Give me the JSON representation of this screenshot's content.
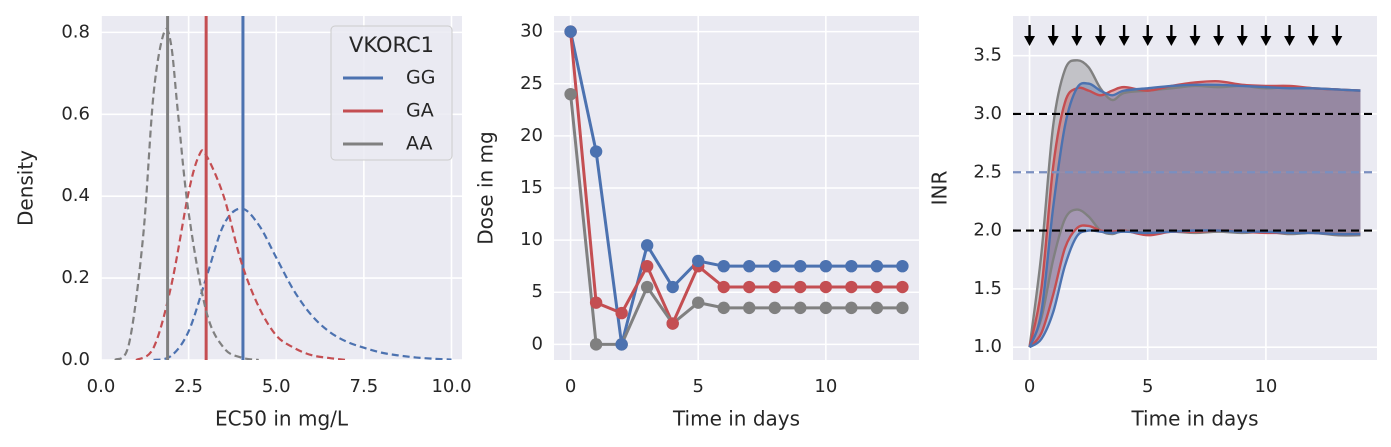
{
  "chart_data": [
    {
      "panel": "density",
      "type": "line",
      "xlabel": "EC50 in mg/L",
      "ylabel": "Density",
      "xlim": [
        0.0,
        10.3
      ],
      "ylim": [
        0.0,
        0.84
      ],
      "xticks": [
        0.0,
        2.5,
        5.0,
        7.5,
        10.0
      ],
      "xtick_labels": [
        "0.0",
        "2.5",
        "5.0",
        "7.5",
        "10.0"
      ],
      "yticks": [
        0.0,
        0.2,
        0.4,
        0.6,
        0.8
      ],
      "ytick_labels": [
        "0.0",
        "0.2",
        "0.4",
        "0.6",
        "0.8"
      ],
      "grid": true,
      "legend": {
        "title": "VKORC1",
        "placement": "upper right",
        "entries": [
          "GG",
          "GA",
          "AA"
        ]
      },
      "series": [
        {
          "name": "GG",
          "color": "#4c72b0",
          "style": "dashed",
          "x": [
            1.5,
            2.0,
            2.5,
            3.0,
            3.5,
            4.0,
            4.5,
            5.0,
            5.5,
            6.0,
            6.5,
            7.0,
            7.5,
            8.0,
            8.5,
            9.0,
            9.5,
            10.0
          ],
          "y": [
            0.0,
            0.01,
            0.07,
            0.2,
            0.33,
            0.37,
            0.33,
            0.25,
            0.17,
            0.11,
            0.07,
            0.045,
            0.03,
            0.018,
            0.011,
            0.006,
            0.003,
            0.001
          ],
          "vline": 4.05
        },
        {
          "name": "GA",
          "color": "#c44e52",
          "style": "dashed",
          "x": [
            1.0,
            1.5,
            2.0,
            2.5,
            2.8,
            3.0,
            3.5,
            4.0,
            4.5,
            5.0,
            5.5,
            6.0,
            6.5,
            7.0
          ],
          "y": [
            0.0,
            0.03,
            0.18,
            0.41,
            0.5,
            0.5,
            0.4,
            0.24,
            0.13,
            0.06,
            0.03,
            0.012,
            0.005,
            0.0
          ],
          "vline": 3.0
        },
        {
          "name": "AA",
          "color": "#808080",
          "style": "dashed",
          "x": [
            0.4,
            0.8,
            1.2,
            1.5,
            1.8,
            2.0,
            2.2,
            2.5,
            3.0,
            3.5,
            4.0,
            4.5
          ],
          "y": [
            0.0,
            0.04,
            0.3,
            0.65,
            0.8,
            0.77,
            0.6,
            0.36,
            0.12,
            0.03,
            0.006,
            0.0
          ],
          "vline": 1.9
        }
      ]
    },
    {
      "panel": "dose",
      "type": "line",
      "xlabel": "Time in days",
      "ylabel": "Dose in mg",
      "xlim": [
        -0.65,
        13.65
      ],
      "ylim": [
        -1.5,
        31.5
      ],
      "xticks": [
        0,
        5,
        10
      ],
      "xtick_labels": [
        "0",
        "5",
        "10"
      ],
      "yticks": [
        0,
        5,
        10,
        15,
        20,
        25,
        30
      ],
      "ytick_labels": [
        "0",
        "5",
        "10",
        "15",
        "20",
        "25",
        "30"
      ],
      "grid": true,
      "series": [
        {
          "name": "GG",
          "color": "#4c72b0",
          "x": [
            0,
            1,
            2,
            3,
            4,
            5,
            6,
            7,
            8,
            9,
            10,
            11,
            12,
            13
          ],
          "y": [
            30,
            18.5,
            0,
            9.5,
            5.5,
            8,
            7.5,
            7.5,
            7.5,
            7.5,
            7.5,
            7.5,
            7.5,
            7.5
          ]
        },
        {
          "name": "GA",
          "color": "#c44e52",
          "x": [
            0,
            1,
            2,
            3,
            4,
            5,
            6,
            7,
            8,
            9,
            10,
            11,
            12,
            13
          ],
          "y": [
            30,
            4,
            3,
            7.5,
            2,
            7.5,
            5.5,
            5.5,
            5.5,
            5.5,
            5.5,
            5.5,
            5.5,
            5.5
          ]
        },
        {
          "name": "AA",
          "color": "#808080",
          "x": [
            0,
            1,
            2,
            3,
            4,
            5,
            6,
            7,
            8,
            9,
            10,
            11,
            12,
            13
          ],
          "y": [
            24,
            0,
            0,
            5.5,
            2,
            4,
            3.5,
            3.5,
            3.5,
            3.5,
            3.5,
            3.5,
            3.5,
            3.5
          ]
        }
      ]
    },
    {
      "panel": "inr",
      "type": "area",
      "xlabel": "Time in days",
      "ylabel": "INR",
      "xlim": [
        -0.7,
        14.7
      ],
      "ylim": [
        0.89,
        3.84
      ],
      "xticks": [
        0,
        5,
        10
      ],
      "xtick_labels": [
        "0",
        "5",
        "10"
      ],
      "yticks": [
        1.0,
        1.5,
        2.0,
        2.5,
        3.0,
        3.5
      ],
      "ytick_labels": [
        "1.0",
        "1.5",
        "2.0",
        "2.5",
        "3.0",
        "3.5"
      ],
      "grid": true,
      "dose_arrows_x": [
        0,
        1,
        2,
        3,
        4,
        5,
        6,
        7,
        8,
        9,
        10,
        11,
        12,
        13
      ],
      "hlines": [
        {
          "y": 3.0,
          "color": "#000000",
          "style": "dashed"
        },
        {
          "y": 2.5,
          "color": "#7a8fc0",
          "style": "dashed"
        },
        {
          "y": 2.0,
          "color": "#000000",
          "style": "dashed"
        }
      ],
      "bands": [
        {
          "name": "AA",
          "color": "#808080",
          "x": [
            0,
            0.5,
            1,
            1.5,
            2,
            2.5,
            3,
            3.5,
            4,
            5,
            6,
            7,
            8,
            9,
            10,
            11,
            12,
            13,
            14
          ],
          "lower": [
            1.0,
            1.25,
            1.75,
            2.1,
            2.18,
            2.12,
            2.0,
            1.97,
            2.0,
            1.98,
            1.99,
            1.98,
            1.99,
            1.98,
            1.99,
            1.97,
            1.98,
            1.96,
            1.96
          ],
          "upper": [
            1.0,
            1.8,
            2.9,
            3.38,
            3.46,
            3.4,
            3.22,
            3.12,
            3.18,
            3.2,
            3.22,
            3.24,
            3.23,
            3.24,
            3.22,
            3.23,
            3.22,
            3.21,
            3.2
          ]
        },
        {
          "name": "GA",
          "color": "#c44e52",
          "x": [
            0,
            0.5,
            1,
            1.5,
            2,
            2.5,
            3,
            3.5,
            4,
            5,
            6,
            7,
            8,
            9,
            10,
            11,
            12,
            13,
            14
          ],
          "lower": [
            1.0,
            1.12,
            1.45,
            1.85,
            2.02,
            2.04,
            2.0,
            1.99,
            2.0,
            1.96,
            1.99,
            1.99,
            2.0,
            1.99,
            1.98,
            1.98,
            1.98,
            1.97,
            1.97
          ],
          "upper": [
            1.0,
            1.5,
            2.55,
            3.1,
            3.22,
            3.2,
            3.16,
            3.2,
            3.23,
            3.2,
            3.24,
            3.27,
            3.28,
            3.25,
            3.24,
            3.24,
            3.22,
            3.21,
            3.2
          ]
        },
        {
          "name": "GG",
          "color": "#4c72b0",
          "x": [
            0,
            0.5,
            1,
            1.5,
            2,
            2.5,
            3,
            3.5,
            4,
            5,
            6,
            7,
            8,
            9,
            10,
            11,
            12,
            13,
            14
          ],
          "lower": [
            1.0,
            1.07,
            1.3,
            1.7,
            1.95,
            2.0,
            1.99,
            1.98,
            1.99,
            1.98,
            1.99,
            2.0,
            2.0,
            1.99,
            1.99,
            1.98,
            1.98,
            1.97,
            1.97
          ],
          "upper": [
            1.0,
            1.3,
            2.2,
            2.9,
            3.22,
            3.26,
            3.2,
            3.16,
            3.2,
            3.22,
            3.24,
            3.25,
            3.25,
            3.24,
            3.23,
            3.22,
            3.22,
            3.21,
            3.2
          ]
        }
      ]
    }
  ]
}
